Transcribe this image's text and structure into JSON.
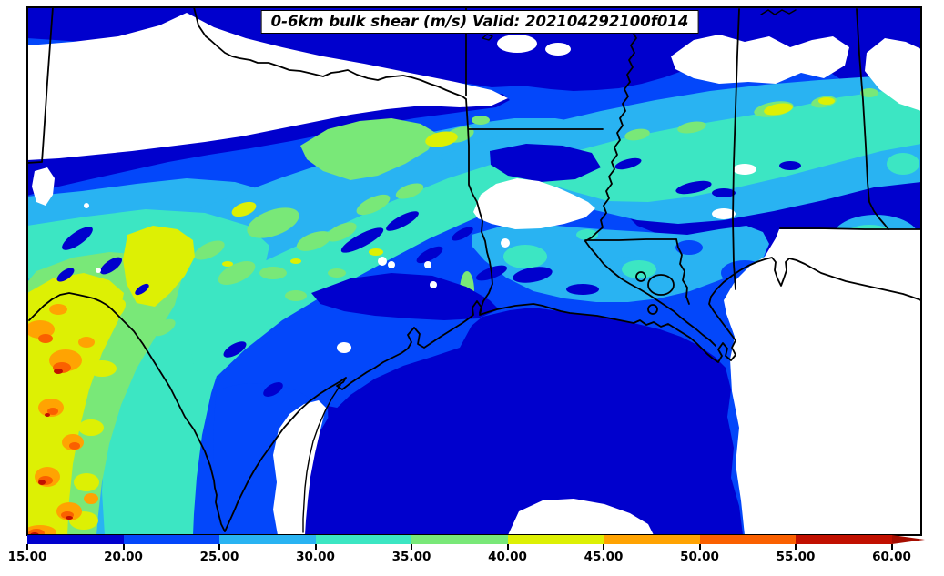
{
  "title": {
    "text": "0-6km bulk shear (m/s) Valid: 202104292100f014"
  },
  "colorbar": {
    "ticks": [
      "15.00",
      "20.00",
      "25.00",
      "30.00",
      "35.00",
      "40.00",
      "45.00",
      "50.00",
      "55.00",
      "60.00"
    ],
    "bins": [
      {
        "range": "15-20",
        "color": "#0000CD"
      },
      {
        "range": "20-25",
        "color": "#0347FA"
      },
      {
        "range": "25-30",
        "color": "#29B3F2"
      },
      {
        "range": "30-35",
        "color": "#3CE6C3"
      },
      {
        "range": "35-40",
        "color": "#79E878"
      },
      {
        "range": "40-45",
        "color": "#DDF004"
      },
      {
        "range": "45-50",
        "color": "#FFA302"
      },
      {
        "range": "50-55",
        "color": "#FA6000"
      },
      {
        "range": "55-60",
        "color": "#C11000"
      }
    ],
    "arrow_color": "#A50D00",
    "below_min_color": "#FFFFFF"
  },
  "map": {
    "background": "#FFFFFF",
    "frame_color": "#000000",
    "boundary_color": "#000000"
  }
}
